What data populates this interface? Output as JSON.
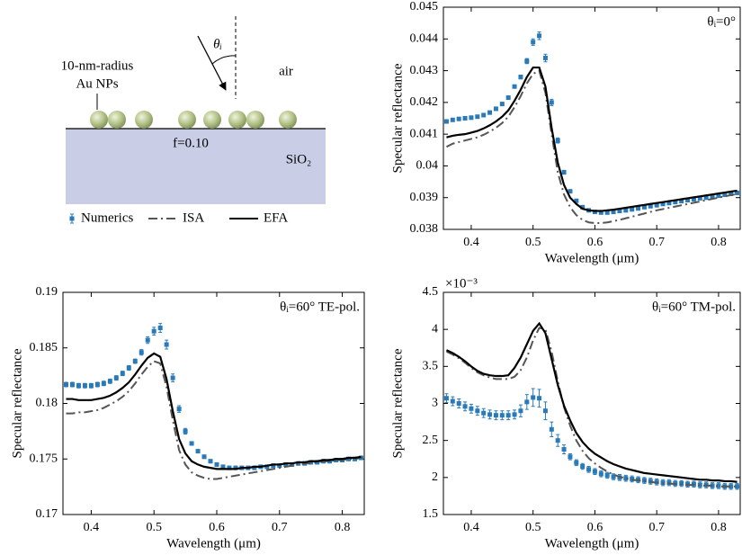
{
  "diagram": {
    "np_label": [
      "10-nm-radius",
      "Au NPs"
    ],
    "angle": "θᵢ",
    "medium": "air",
    "fill_fraction": "f=0.10",
    "substrate": "SiO₂"
  },
  "chart_data": [
    {
      "type": "line",
      "annotation": "θᵢ=0°",
      "xlabel": "Wavelength (μm)",
      "ylabel": "Specular reflectance",
      "xlim": [
        0.355,
        0.835
      ],
      "xticks": [
        0.4,
        0.5,
        0.6,
        0.7,
        0.8
      ],
      "ylim": [
        0.038,
        0.045
      ],
      "yticks": [
        0.038,
        0.039,
        0.04,
        0.041,
        0.042,
        0.043,
        0.044,
        0.045
      ],
      "x": [
        0.36,
        0.37,
        0.38,
        0.39,
        0.4,
        0.41,
        0.42,
        0.43,
        0.44,
        0.45,
        0.46,
        0.47,
        0.48,
        0.49,
        0.5,
        0.51,
        0.52,
        0.53,
        0.54,
        0.55,
        0.56,
        0.57,
        0.58,
        0.59,
        0.6,
        0.61,
        0.62,
        0.63,
        0.64,
        0.65,
        0.66,
        0.67,
        0.68,
        0.69,
        0.7,
        0.71,
        0.72,
        0.73,
        0.74,
        0.75,
        0.76,
        0.77,
        0.78,
        0.79,
        0.8,
        0.81,
        0.82,
        0.83
      ],
      "series": [
        {
          "name": "Numerics",
          "color": "#2a7ab9",
          "style": "markers",
          "values": [
            0.0414,
            0.04145,
            0.04148,
            0.0415,
            0.04152,
            0.04155,
            0.0416,
            0.04168,
            0.0418,
            0.04195,
            0.04215,
            0.0425,
            0.0428,
            0.0433,
            0.0439,
            0.0441,
            0.0434,
            0.042,
            0.0408,
            0.0398,
            0.0392,
            0.0389,
            0.0387,
            0.0386,
            0.03855,
            0.03853,
            0.03853,
            0.03855,
            0.03858,
            0.0386,
            0.03863,
            0.03866,
            0.0387,
            0.03873,
            0.03876,
            0.0388,
            0.03883,
            0.03886,
            0.03889,
            0.03892,
            0.03895,
            0.03898,
            0.039,
            0.03903,
            0.03906,
            0.03909,
            0.03912,
            0.03915
          ],
          "errors": [
            5e-05,
            5e-05,
            5e-05,
            5e-05,
            5e-05,
            5e-05,
            5e-05,
            5e-05,
            5e-05,
            5e-05,
            5e-05,
            5e-05,
            6e-05,
            8e-05,
            0.0001,
            0.00012,
            0.00012,
            0.0001,
            8e-05,
            6e-05,
            4e-05,
            4e-05,
            4e-05,
            4e-05,
            4e-05,
            4e-05,
            4e-05,
            4e-05,
            4e-05,
            4e-05,
            4e-05,
            4e-05,
            4e-05,
            4e-05,
            4e-05,
            4e-05,
            4e-05,
            4e-05,
            4e-05,
            4e-05,
            4e-05,
            4e-05,
            4e-05,
            4e-05,
            4e-05,
            4e-05,
            4e-05,
            4e-05
          ]
        },
        {
          "name": "ISA",
          "color": "#555555",
          "style": "dashdot",
          "values": [
            0.0406,
            0.0407,
            0.04075,
            0.0408,
            0.04085,
            0.0409,
            0.04098,
            0.04108,
            0.0412,
            0.04135,
            0.04155,
            0.04185,
            0.0422,
            0.0426,
            0.0429,
            0.043,
            0.0423,
            0.041,
            0.0398,
            0.0391,
            0.0387,
            0.03845,
            0.0383,
            0.03822,
            0.0382,
            0.0382,
            0.03822,
            0.03826,
            0.0383,
            0.03835,
            0.0384,
            0.03845,
            0.0385,
            0.03855,
            0.0386,
            0.03864,
            0.03868,
            0.03872,
            0.03876,
            0.0388,
            0.03884,
            0.03888,
            0.03892,
            0.03896,
            0.039,
            0.03904,
            0.03908,
            0.03912
          ]
        },
        {
          "name": "EFA",
          "color": "#000000",
          "style": "solid",
          "values": [
            0.0409,
            0.04095,
            0.04098,
            0.041,
            0.04105,
            0.0411,
            0.04118,
            0.04128,
            0.0414,
            0.04155,
            0.04175,
            0.04205,
            0.0424,
            0.0428,
            0.0431,
            0.0431,
            0.0425,
            0.0412,
            0.0401,
            0.0394,
            0.039,
            0.0388,
            0.03865,
            0.0386,
            0.03858,
            0.03858,
            0.0386,
            0.03862,
            0.03865,
            0.03868,
            0.03871,
            0.03874,
            0.03877,
            0.0388,
            0.03883,
            0.03886,
            0.03889,
            0.03892,
            0.03895,
            0.03898,
            0.03901,
            0.03904,
            0.03907,
            0.0391,
            0.03913,
            0.03916,
            0.03919,
            0.03922
          ]
        }
      ]
    },
    {
      "type": "line",
      "annotation": "θᵢ=60° TE-pol.",
      "xlabel": "Wavelength (μm)",
      "ylabel": "Specular reflectance",
      "xlim": [
        0.355,
        0.835
      ],
      "xticks": [
        0.4,
        0.5,
        0.6,
        0.7,
        0.8
      ],
      "ylim": [
        0.17,
        0.19
      ],
      "yticks": [
        0.17,
        0.175,
        0.18,
        0.185,
        0.19
      ],
      "x": [
        0.36,
        0.37,
        0.38,
        0.39,
        0.4,
        0.41,
        0.42,
        0.43,
        0.44,
        0.45,
        0.46,
        0.47,
        0.48,
        0.49,
        0.5,
        0.51,
        0.52,
        0.53,
        0.54,
        0.55,
        0.56,
        0.57,
        0.58,
        0.59,
        0.6,
        0.61,
        0.62,
        0.63,
        0.64,
        0.65,
        0.66,
        0.67,
        0.68,
        0.69,
        0.7,
        0.71,
        0.72,
        0.73,
        0.74,
        0.75,
        0.76,
        0.77,
        0.78,
        0.79,
        0.8,
        0.81,
        0.82,
        0.83
      ],
      "series": [
        {
          "name": "Numerics",
          "color": "#2a7ab9",
          "style": "markers",
          "values": [
            0.1817,
            0.1817,
            0.1816,
            0.1816,
            0.1816,
            0.1817,
            0.1818,
            0.182,
            0.1823,
            0.1827,
            0.1832,
            0.1838,
            0.1846,
            0.1857,
            0.1865,
            0.1868,
            0.1853,
            0.1823,
            0.1795,
            0.1775,
            0.1764,
            0.1757,
            0.1752,
            0.1748,
            0.1745,
            0.1743,
            0.1742,
            0.1742,
            0.1742,
            0.1742,
            0.1742,
            0.1743,
            0.1743,
            0.1744,
            0.1744,
            0.1745,
            0.1745,
            0.1746,
            0.1746,
            0.1747,
            0.1747,
            0.1748,
            0.1748,
            0.1749,
            0.1749,
            0.175,
            0.175,
            0.1751
          ],
          "errors": [
            0.0002,
            0.0002,
            0.0002,
            0.0002,
            0.0002,
            0.0002,
            0.0002,
            0.0002,
            0.0002,
            0.0002,
            0.0002,
            0.0002,
            0.00025,
            0.0003,
            0.00035,
            0.0004,
            0.0004,
            0.00035,
            0.0003,
            0.00025,
            0.00015,
            0.00015,
            0.00015,
            0.00015,
            0.00015,
            0.00015,
            0.00015,
            0.00015,
            0.00015,
            0.00015,
            0.00015,
            0.00015,
            0.00015,
            0.00015,
            0.00015,
            0.00015,
            0.00015,
            0.00015,
            0.00015,
            0.00015,
            0.00015,
            0.00015,
            0.00015,
            0.00015,
            0.00015,
            0.00015,
            0.00015,
            0.00015
          ]
        },
        {
          "name": "ISA",
          "color": "#555555",
          "style": "dashdot",
          "values": [
            0.1791,
            0.1791,
            0.1792,
            0.1792,
            0.1793,
            0.1794,
            0.1796,
            0.1799,
            0.1802,
            0.1806,
            0.1811,
            0.1818,
            0.1826,
            0.1833,
            0.1838,
            0.1836,
            0.1815,
            0.1785,
            0.1758,
            0.1745,
            0.1738,
            0.1735,
            0.1733,
            0.1732,
            0.1732,
            0.1733,
            0.1734,
            0.1735,
            0.1736,
            0.1737,
            0.1738,
            0.1739,
            0.174,
            0.1741,
            0.1742,
            0.1743,
            0.1744,
            0.1745,
            0.1746,
            0.1746,
            0.1747,
            0.1748,
            0.1748,
            0.1749,
            0.1749,
            0.175,
            0.175,
            0.1751
          ]
        },
        {
          "name": "EFA",
          "color": "#000000",
          "style": "solid",
          "values": [
            0.1804,
            0.1804,
            0.1803,
            0.1803,
            0.1803,
            0.1804,
            0.1805,
            0.1807,
            0.181,
            0.1814,
            0.1819,
            0.1826,
            0.1834,
            0.1841,
            0.1845,
            0.1842,
            0.1822,
            0.1793,
            0.1768,
            0.1755,
            0.1748,
            0.1745,
            0.1743,
            0.1742,
            0.1741,
            0.1741,
            0.1741,
            0.1741,
            0.1742,
            0.1742,
            0.1743,
            0.1743,
            0.1744,
            0.1745,
            0.1745,
            0.1746,
            0.1746,
            0.1747,
            0.1747,
            0.1748,
            0.1748,
            0.1749,
            0.1749,
            0.175,
            0.175,
            0.1751,
            0.1751,
            0.1752
          ]
        }
      ]
    },
    {
      "type": "line",
      "annotation": "θᵢ=60° TM-pol.",
      "xlabel": "Wavelength (μm)",
      "ylabel": "Specular reflectance",
      "axis_multiplier": "×10⁻³",
      "xlim": [
        0.355,
        0.835
      ],
      "xticks": [
        0.4,
        0.5,
        0.6,
        0.7,
        0.8
      ],
      "ylim": [
        1.5,
        4.5
      ],
      "yticks": [
        1.5,
        2,
        2.5,
        3,
        3.5,
        4,
        4.5
      ],
      "x": [
        0.36,
        0.37,
        0.38,
        0.39,
        0.4,
        0.41,
        0.42,
        0.43,
        0.44,
        0.45,
        0.46,
        0.47,
        0.48,
        0.49,
        0.5,
        0.51,
        0.52,
        0.53,
        0.54,
        0.55,
        0.56,
        0.57,
        0.58,
        0.59,
        0.6,
        0.61,
        0.62,
        0.63,
        0.64,
        0.65,
        0.66,
        0.67,
        0.68,
        0.69,
        0.7,
        0.71,
        0.72,
        0.73,
        0.74,
        0.75,
        0.76,
        0.77,
        0.78,
        0.79,
        0.8,
        0.81,
        0.82,
        0.83
      ],
      "series": [
        {
          "name": "Numerics",
          "color": "#2a7ab9",
          "style": "markers",
          "values": [
            3.07,
            3.03,
            3.0,
            2.96,
            2.93,
            2.9,
            2.87,
            2.85,
            2.84,
            2.84,
            2.84,
            2.85,
            2.9,
            3.02,
            3.08,
            3.07,
            2.9,
            2.65,
            2.5,
            2.38,
            2.28,
            2.2,
            2.15,
            2.11,
            2.08,
            2.05,
            2.03,
            2.01,
            2.0,
            1.99,
            1.98,
            1.97,
            1.96,
            1.95,
            1.94,
            1.93,
            1.93,
            1.92,
            1.92,
            1.91,
            1.91,
            1.9,
            1.9,
            1.89,
            1.89,
            1.88,
            1.88,
            1.88
          ],
          "errors": [
            0.06,
            0.06,
            0.06,
            0.06,
            0.06,
            0.06,
            0.06,
            0.06,
            0.06,
            0.06,
            0.06,
            0.06,
            0.08,
            0.1,
            0.12,
            0.12,
            0.12,
            0.1,
            0.08,
            0.06,
            0.04,
            0.04,
            0.04,
            0.04,
            0.04,
            0.04,
            0.04,
            0.04,
            0.04,
            0.04,
            0.04,
            0.04,
            0.04,
            0.04,
            0.04,
            0.04,
            0.04,
            0.04,
            0.04,
            0.04,
            0.04,
            0.04,
            0.04,
            0.04,
            0.04,
            0.04,
            0.04,
            0.04
          ]
        },
        {
          "name": "ISA",
          "color": "#555555",
          "style": "dashdot",
          "values": [
            3.7,
            3.66,
            3.61,
            3.55,
            3.48,
            3.42,
            3.38,
            3.35,
            3.33,
            3.33,
            3.33,
            3.36,
            3.45,
            3.62,
            3.85,
            4.02,
            4.0,
            3.7,
            3.3,
            2.95,
            2.7,
            2.5,
            2.36,
            2.26,
            2.19,
            2.13,
            2.08,
            2.04,
            2.01,
            1.99,
            1.97,
            1.96,
            1.95,
            1.94,
            1.93,
            1.92,
            1.92,
            1.91,
            1.91,
            1.9,
            1.9,
            1.89,
            1.89,
            1.89,
            1.88,
            1.88,
            1.88,
            1.88
          ]
        },
        {
          "name": "EFA",
          "color": "#000000",
          "style": "solid",
          "values": [
            3.72,
            3.68,
            3.63,
            3.57,
            3.5,
            3.44,
            3.4,
            3.38,
            3.37,
            3.37,
            3.38,
            3.48,
            3.62,
            3.8,
            3.98,
            4.08,
            3.95,
            3.6,
            3.25,
            2.97,
            2.77,
            2.6,
            2.48,
            2.39,
            2.32,
            2.27,
            2.22,
            2.18,
            2.15,
            2.12,
            2.1,
            2.08,
            2.06,
            2.05,
            2.04,
            2.03,
            2.02,
            2.01,
            2.0,
            1.99,
            1.98,
            1.97,
            1.97,
            1.96,
            1.96,
            1.95,
            1.95,
            1.94
          ]
        }
      ]
    }
  ]
}
